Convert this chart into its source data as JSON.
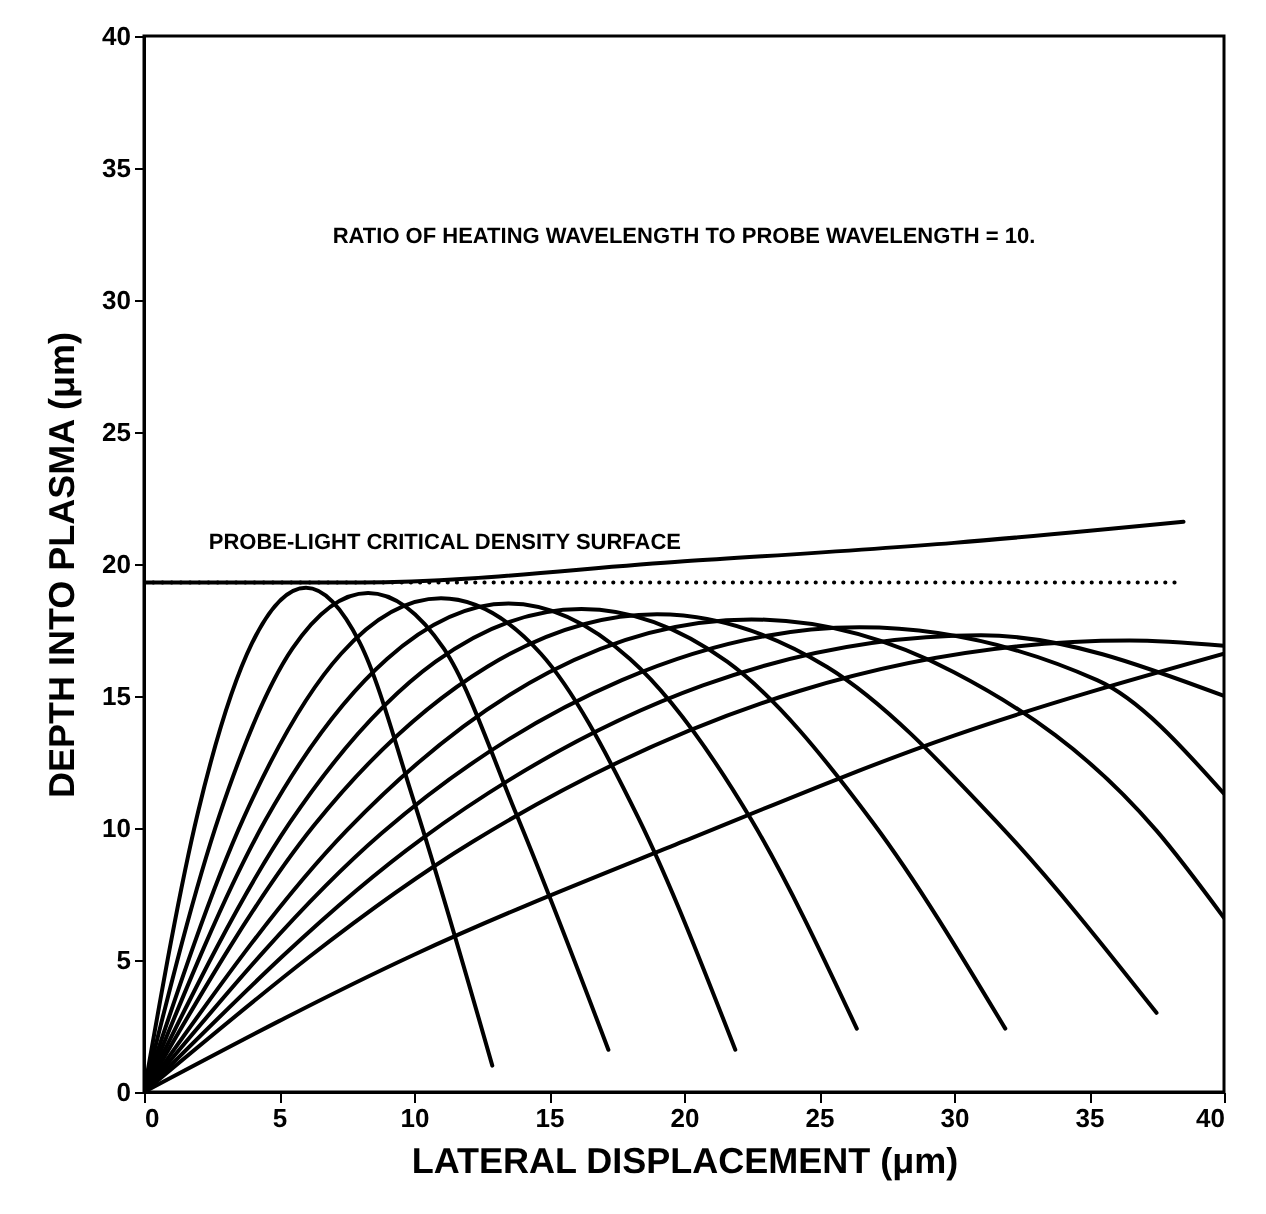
{
  "chart_data": {
    "type": "line",
    "xlabel": "LATERAL DISPLACEMENT (μm)",
    "ylabel": "DEPTH INTO PLASMA (μm)",
    "xlim": [
      0,
      40
    ],
    "ylim": [
      0,
      40
    ],
    "xticks": [
      0,
      5,
      10,
      15,
      20,
      25,
      30,
      35,
      40
    ],
    "yticks": [
      0,
      5,
      10,
      15,
      20,
      25,
      30,
      35,
      40
    ],
    "annotations": [
      "RATIO OF HEATING WAVELENGTH TO PROBE WAVELENGTH = 10.",
      "PROBE-LIGHT CRITICAL DENSITY SURFACE"
    ],
    "series": [
      {
        "color": "#000000",
        "x": [
          0,
          8,
          20,
          30,
          38.5
        ],
        "values": [
          19.3,
          19.3,
          20.1,
          20.8,
          21.6
        ]
      },
      {
        "color": "#000000",
        "line_style": "dotted",
        "x": [
          0,
          38.5
        ],
        "values": [
          19.3,
          19.3
        ]
      },
      {
        "color": "#000000",
        "x": [
          0,
          2,
          4,
          6,
          8,
          10,
          12.9
        ],
        "values": [
          0,
          10.6,
          17.0,
          19.1,
          17.0,
          11.0,
          1.0
        ]
      },
      {
        "color": "#000000",
        "x": [
          0,
          2.8,
          5.5,
          8.3,
          11.1,
          13.8,
          17.2
        ],
        "values": [
          0,
          10.5,
          16.8,
          18.9,
          16.8,
          10.5,
          1.6
        ]
      },
      {
        "color": "#000000",
        "x": [
          0,
          3.7,
          7.3,
          11,
          14.7,
          18.3,
          21.9
        ],
        "values": [
          0,
          10.4,
          16.6,
          18.7,
          16.6,
          10.4,
          1.6
        ]
      },
      {
        "color": "#000000",
        "x": [
          0,
          4.5,
          9,
          13.5,
          18,
          22.5,
          26.4
        ],
        "values": [
          0,
          10.3,
          16.4,
          18.5,
          16.4,
          10.3,
          2.4
        ]
      },
      {
        "color": "#000000",
        "x": [
          0,
          5.4,
          10.8,
          16.2,
          21.6,
          27,
          31.9
        ],
        "values": [
          0,
          10.2,
          16.3,
          18.3,
          16.3,
          10.2,
          2.4
        ]
      },
      {
        "color": "#000000",
        "x": [
          0,
          6.3,
          12.7,
          19,
          25.3,
          31.7,
          37.5
        ],
        "values": [
          0,
          10.1,
          16.1,
          18.1,
          16.1,
          10.1,
          3.0
        ]
      },
      {
        "color": "#000000",
        "x": [
          0,
          7.5,
          15,
          22.5,
          30,
          37.5,
          40
        ],
        "values": [
          0,
          9.9,
          15.9,
          17.9,
          15.9,
          9.9,
          6.6
        ]
      },
      {
        "color": "#000000",
        "x": [
          0,
          8.8,
          17.7,
          26.5,
          35.3,
          40
        ],
        "values": [
          0,
          9.8,
          15.6,
          17.6,
          15.6,
          11.3
        ]
      },
      {
        "color": "#000000",
        "x": [
          0,
          10.3,
          20.7,
          31,
          40
        ],
        "values": [
          0,
          9.6,
          15.4,
          17.3,
          15.0
        ]
      },
      {
        "color": "#000000",
        "x": [
          0,
          12.2,
          24.3,
          36.5,
          40
        ],
        "values": [
          0,
          9.5,
          15.2,
          17.1,
          16.9
        ]
      },
      {
        "color": "#000000",
        "x": [
          0,
          10,
          20,
          30,
          40
        ],
        "values": [
          0,
          5.2,
          9.5,
          13.5,
          16.6
        ]
      }
    ]
  }
}
